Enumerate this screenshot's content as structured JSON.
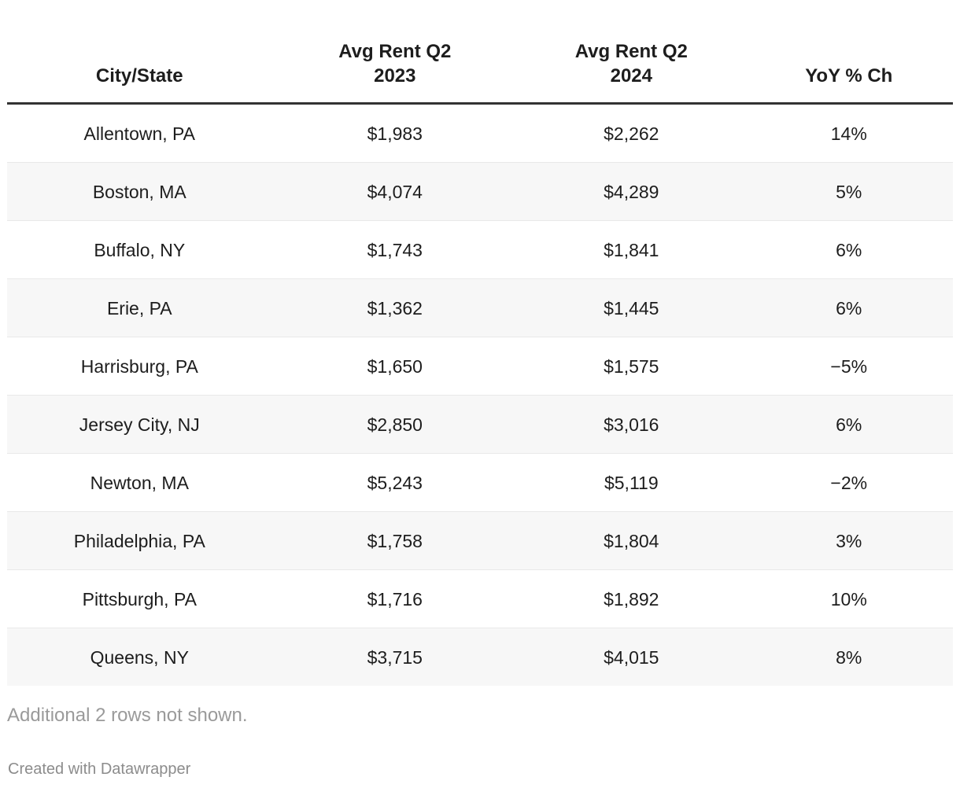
{
  "colors": {
    "background": "#ffffff",
    "text": "#1d1d1d",
    "header_rule": "#333333",
    "alt_row_background": "#f7f7f7",
    "row_divider": "#e9e9e9",
    "muted_text": "#9a9a9a",
    "attribution_text": "#8c8c8c"
  },
  "chart_data": {
    "type": "table",
    "columns": [
      "City/State",
      "Avg Rent Q2\n2023",
      "Avg Rent Q2\n2024",
      "YoY % Ch"
    ],
    "rows": [
      [
        "Allentown, PA",
        "$1,983",
        "$2,262",
        "14%"
      ],
      [
        "Boston, MA",
        "$4,074",
        "$4,289",
        "5%"
      ],
      [
        "Buffalo, NY",
        "$1,743",
        "$1,841",
        "6%"
      ],
      [
        "Erie, PA",
        "$1,362",
        "$1,445",
        "6%"
      ],
      [
        "Harrisburg, PA",
        "$1,650",
        "$1,575",
        "−5%"
      ],
      [
        "Jersey City, NJ",
        "$2,850",
        "$3,016",
        "6%"
      ],
      [
        "Newton, MA",
        "$5,243",
        "$5,119",
        "−2%"
      ],
      [
        "Philadelphia, PA",
        "$1,758",
        "$1,804",
        "3%"
      ],
      [
        "Pittsburgh, PA",
        "$1,716",
        "$1,892",
        "10%"
      ],
      [
        "Queens, NY",
        "$3,715",
        "$4,015",
        "8%"
      ]
    ],
    "layout_hints": {
      "alignment": "center",
      "striped_rows": true,
      "header_rule": true
    }
  },
  "footer": {
    "note": "Additional 2 rows not shown.",
    "attribution": "Created with Datawrapper"
  }
}
